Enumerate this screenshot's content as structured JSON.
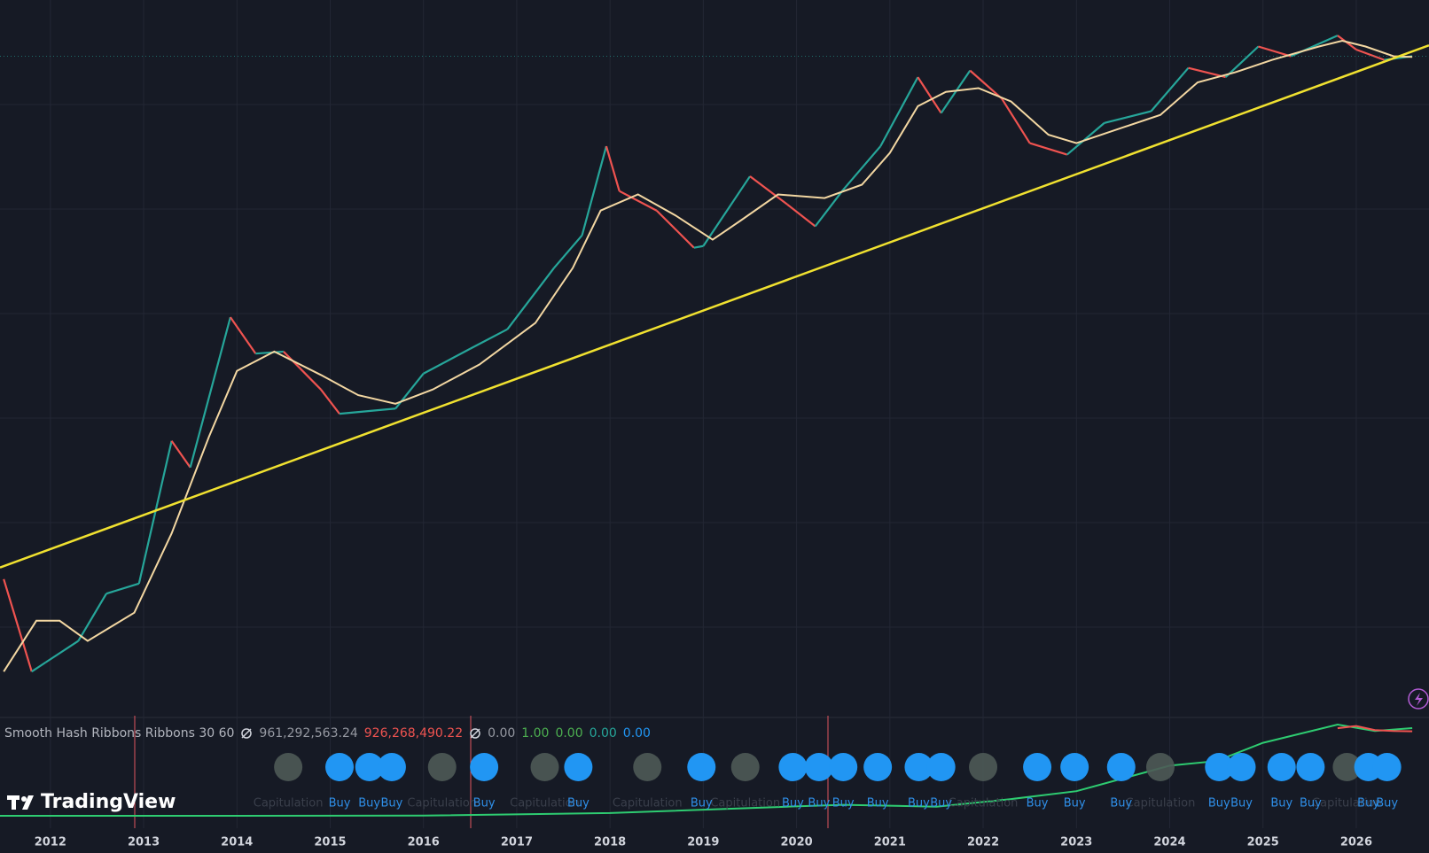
{
  "watermark": "TradingView",
  "chart_data": [
    {
      "type": "line",
      "log_scale": true,
      "grid": true,
      "xlim": [
        2011.46,
        2026.78
      ],
      "ylim": [
        1.46,
        217000
      ],
      "xticks": [
        2012,
        2013,
        2014,
        2015,
        2016,
        2017,
        2018,
        2019,
        2020,
        2021,
        2022,
        2023,
        2024,
        2025,
        2026
      ],
      "series": [
        {
          "color": "#26a69a",
          "down_color": "#ef5350",
          "x": [
            2011.5,
            2011.8,
            2011.95,
            2012.3,
            2012.6,
            2012.95,
            2013.3,
            2013.5,
            2013.93,
            2014.2,
            2014.5,
            2014.9,
            2015.1,
            2015.7,
            2016.0,
            2016.5,
            2016.9,
            2017.4,
            2017.7,
            2017.96,
            2018.1,
            2018.5,
            2018.9,
            2019.0,
            2019.5,
            2019.9,
            2020.2,
            2020.5,
            2020.9,
            2021.3,
            2021.55,
            2021.86,
            2022.2,
            2022.5,
            2022.9,
            2023.3,
            2023.8,
            2024.2,
            2024.6,
            2024.95,
            2025.3,
            2025.8,
            2026.0,
            2026.3,
            2026.6
          ],
          "values": [
            14,
            3,
            3.5,
            5,
            11,
            13,
            140,
            90,
            1100,
            600,
            620,
            330,
            220,
            240,
            430,
            650,
            900,
            2500,
            4300,
            19000,
            9000,
            6500,
            3500,
            3600,
            11500,
            7200,
            5000,
            9200,
            19000,
            60000,
            33000,
            67000,
            42000,
            20000,
            16500,
            28000,
            34000,
            70000,
            60000,
            100000,
            85000,
            120000,
            95000,
            80000,
            85000
          ]
        },
        {
          "color": "#f3d7a2",
          "x": [
            2011.5,
            2011.85,
            2012.1,
            2012.4,
            2012.9,
            2013.3,
            2013.7,
            2014.0,
            2014.4,
            2014.9,
            2015.3,
            2015.7,
            2016.1,
            2016.6,
            2017.2,
            2017.6,
            2017.9,
            2018.3,
            2018.7,
            2019.1,
            2019.4,
            2019.8,
            2020.3,
            2020.7,
            2021.0,
            2021.3,
            2021.6,
            2021.95,
            2022.3,
            2022.7,
            2023.0,
            2023.5,
            2023.9,
            2024.3,
            2024.7,
            2025.1,
            2025.6,
            2025.85,
            2026.1,
            2026.4,
            2026.6
          ],
          "values": [
            3,
            7,
            7,
            5,
            8,
            30,
            150,
            450,
            620,
            420,
            300,
            260,
            330,
            500,
            1000,
            2500,
            6500,
            8500,
            6000,
            4000,
            5500,
            8500,
            8000,
            10000,
            17000,
            37000,
            47000,
            50000,
            40000,
            23000,
            20000,
            26000,
            32000,
            55000,
            65000,
            80000,
            100000,
            110000,
            100000,
            85000,
            84000
          ]
        },
        {
          "color": "#f0e130",
          "x": [
            2011.46,
            2026.78
          ],
          "values": [
            17,
            102000
          ]
        }
      ]
    },
    {
      "type": "line",
      "title": "Smooth Hash Ribbons Ribbons 30 60",
      "legend_values": [
        "961,292,563.24",
        "926,268,490.22",
        "0.00",
        "1.00",
        "0.00",
        "0.00",
        "0.00"
      ],
      "legend_colors": [
        "#9598a1",
        "#ef5350",
        "#9598a1",
        "#4caf50",
        "#4caf50",
        "#26a69a",
        "#2196f3"
      ],
      "xlim": [
        2011.46,
        2026.78
      ],
      "ylim": [
        0,
        1010000000
      ],
      "series": [
        {
          "color": "#2ecc71",
          "x": [
            2011.46,
            2014,
            2016,
            2018,
            2019.9,
            2020.5,
            2021.5,
            2022.3,
            2023,
            2024,
            2024.5,
            2025,
            2025.8,
            2026.2,
            2026.6
          ],
          "values": [
            0,
            300000,
            1500000,
            30000000,
            100000000,
            120000000,
            100000000,
            184000000,
            270000000,
            550000000,
            600000000,
            800000000,
            1000000000,
            930000000,
            961292563.24
          ]
        },
        {
          "color": "#ef5350",
          "x": [
            2025.8,
            2026.0,
            2026.2,
            2026.4,
            2026.6
          ],
          "values": [
            960000000,
            985000000,
            940000000,
            930000000,
            926268490.22
          ]
        }
      ],
      "signals": [
        {
          "x": 2014.55,
          "label": "Capitulation"
        },
        {
          "x": 2016.2,
          "label": "Capitulation"
        },
        {
          "x": 2017.3,
          "label": "Capitulation"
        },
        {
          "x": 2018.4,
          "label": "Capitulation"
        },
        {
          "x": 2019.45,
          "label": "Capitulation"
        },
        {
          "x": 2022.0,
          "label": "Capitulation"
        },
        {
          "x": 2023.9,
          "label": "Capitulation"
        },
        {
          "x": 2025.9,
          "label": "Capitulation"
        },
        {
          "x": 2015.1,
          "label": "Buy"
        },
        {
          "x": 2015.42,
          "label": "Buy"
        },
        {
          "x": 2015.66,
          "label": "Buy"
        },
        {
          "x": 2016.65,
          "label": "Buy"
        },
        {
          "x": 2017.66,
          "label": "Buy"
        },
        {
          "x": 2018.98,
          "label": "Buy"
        },
        {
          "x": 2019.96,
          "label": "Buy"
        },
        {
          "x": 2020.24,
          "label": "Buy"
        },
        {
          "x": 2020.5,
          "label": "Buy"
        },
        {
          "x": 2020.87,
          "label": "Buy"
        },
        {
          "x": 2021.31,
          "label": "Buy"
        },
        {
          "x": 2021.55,
          "label": "Buy"
        },
        {
          "x": 2022.58,
          "label": "Buy"
        },
        {
          "x": 2022.98,
          "label": "Buy"
        },
        {
          "x": 2023.48,
          "label": "Buy"
        },
        {
          "x": 2024.53,
          "label": "Buy"
        },
        {
          "x": 2024.77,
          "label": "Buy"
        },
        {
          "x": 2025.2,
          "label": "Buy"
        },
        {
          "x": 2025.51,
          "label": "Buy"
        },
        {
          "x": 2026.13,
          "label": "Buy"
        },
        {
          "x": 2026.33,
          "label": "Buy"
        }
      ]
    }
  ]
}
